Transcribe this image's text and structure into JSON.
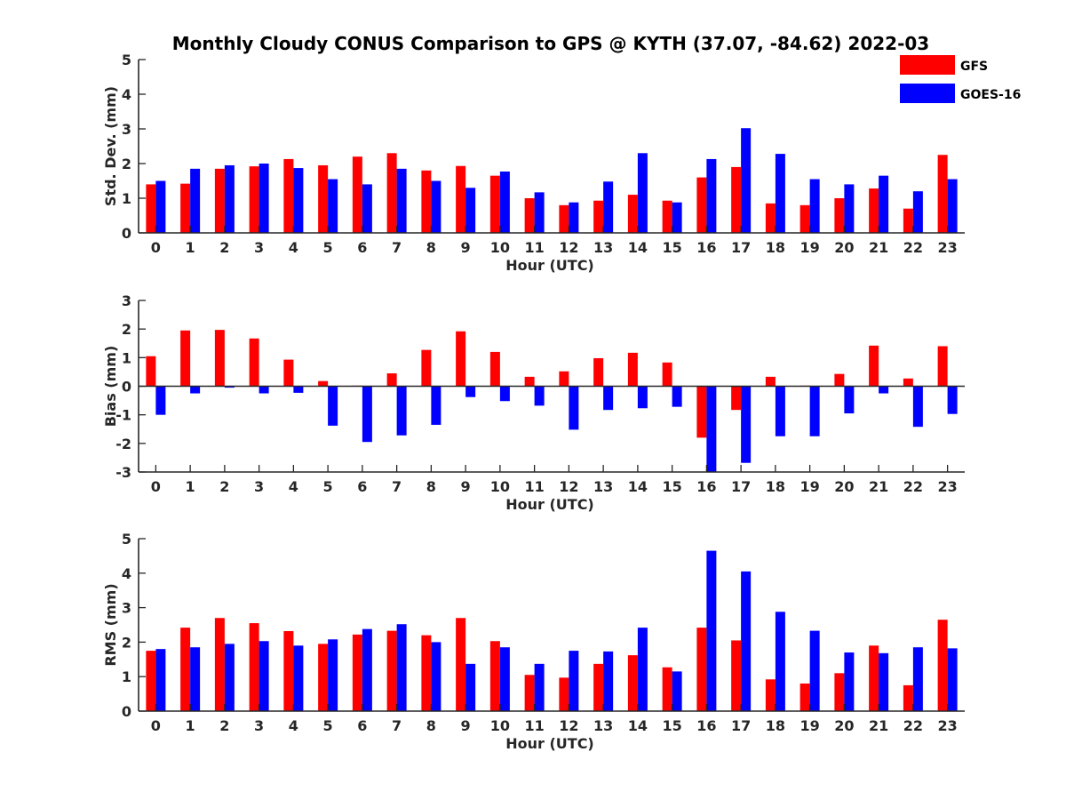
{
  "title": "Monthly Cloudy CONUS Comparison to GPS @ KYTH (37.07, -84.62) 2022-03",
  "legend": {
    "placement": "top-right",
    "entries": [
      {
        "name": "GFS",
        "color": "#ff0000"
      },
      {
        "name": "GOES-16",
        "color": "#0000ff"
      }
    ]
  },
  "chart_data": [
    {
      "type": "bar",
      "xlabel": "Hour (UTC)",
      "ylabel": "Std. Dev. (mm)",
      "ylim": [
        0,
        5
      ],
      "yticks": [
        0,
        1,
        2,
        3,
        4,
        5
      ],
      "categories": [
        "0",
        "1",
        "2",
        "3",
        "4",
        "5",
        "6",
        "7",
        "8",
        "9",
        "10",
        "11",
        "12",
        "13",
        "14",
        "15",
        "16",
        "17",
        "18",
        "19",
        "20",
        "21",
        "22",
        "23"
      ],
      "series": [
        {
          "name": "GFS",
          "color": "#ff0000",
          "values": [
            1.4,
            1.42,
            1.85,
            1.92,
            2.13,
            1.95,
            2.2,
            2.3,
            1.8,
            1.93,
            1.65,
            1.0,
            0.8,
            0.93,
            1.1,
            0.93,
            1.6,
            1.9,
            0.85,
            0.8,
            1.0,
            1.28,
            0.7,
            2.25
          ]
        },
        {
          "name": "GOES-16",
          "color": "#0000ff",
          "values": [
            1.5,
            1.85,
            1.95,
            2.0,
            1.87,
            1.55,
            1.4,
            1.85,
            1.5,
            1.3,
            1.77,
            1.17,
            0.88,
            1.48,
            2.3,
            0.88,
            2.13,
            3.02,
            2.28,
            1.55,
            1.4,
            1.65,
            1.2,
            1.55
          ]
        }
      ]
    },
    {
      "type": "bar",
      "xlabel": "Hour (UTC)",
      "ylabel": "Bias (mm)",
      "ylim": [
        -3,
        3
      ],
      "yticks": [
        -3,
        -2,
        -1,
        0,
        1,
        2,
        3
      ],
      "categories": [
        "0",
        "1",
        "2",
        "3",
        "4",
        "5",
        "6",
        "7",
        "8",
        "9",
        "10",
        "11",
        "12",
        "13",
        "14",
        "15",
        "16",
        "17",
        "18",
        "19",
        "20",
        "21",
        "22",
        "23"
      ],
      "series": [
        {
          "name": "GFS",
          "color": "#ff0000",
          "values": [
            1.05,
            1.95,
            1.97,
            1.67,
            0.93,
            0.18,
            0.02,
            0.45,
            1.27,
            1.92,
            1.2,
            0.33,
            0.52,
            0.98,
            1.17,
            0.83,
            -1.8,
            -0.83,
            0.33,
            0.02,
            0.43,
            1.42,
            0.27,
            1.4
          ]
        },
        {
          "name": "GOES-16",
          "color": "#0000ff",
          "values": [
            -1.0,
            -0.25,
            -0.05,
            -0.25,
            -0.23,
            -1.38,
            -1.95,
            -1.72,
            -1.35,
            -0.38,
            -0.52,
            -0.68,
            -1.52,
            -0.83,
            -0.77,
            -0.72,
            -3.0,
            -2.68,
            -1.75,
            -1.75,
            -0.95,
            -0.25,
            -1.42,
            -0.97
          ]
        }
      ]
    },
    {
      "type": "bar",
      "xlabel": "Hour (UTC)",
      "ylabel": "RMS (mm)",
      "ylim": [
        0,
        5
      ],
      "yticks": [
        0,
        1,
        2,
        3,
        4,
        5
      ],
      "categories": [
        "0",
        "1",
        "2",
        "3",
        "4",
        "5",
        "6",
        "7",
        "8",
        "9",
        "10",
        "11",
        "12",
        "13",
        "14",
        "15",
        "16",
        "17",
        "18",
        "19",
        "20",
        "21",
        "22",
        "23"
      ],
      "series": [
        {
          "name": "GFS",
          "color": "#ff0000",
          "values": [
            1.75,
            2.42,
            2.7,
            2.55,
            2.32,
            1.95,
            2.22,
            2.33,
            2.2,
            2.7,
            2.03,
            1.05,
            0.97,
            1.37,
            1.62,
            1.27,
            2.42,
            2.05,
            0.92,
            0.8,
            1.1,
            1.9,
            0.75,
            2.65
          ]
        },
        {
          "name": "GOES-16",
          "color": "#0000ff",
          "values": [
            1.8,
            1.85,
            1.95,
            2.03,
            1.9,
            2.08,
            2.38,
            2.52,
            2.0,
            1.37,
            1.85,
            1.37,
            1.75,
            1.73,
            2.42,
            1.15,
            4.65,
            4.05,
            2.88,
            2.33,
            1.7,
            1.68,
            1.85,
            1.82
          ]
        }
      ]
    }
  ]
}
